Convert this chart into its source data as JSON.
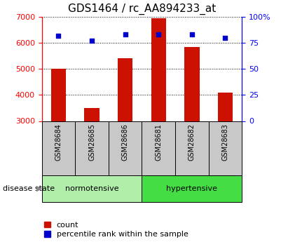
{
  "title": "GDS1464 / rc_AA894233_at",
  "samples": [
    "GSM28684",
    "GSM28685",
    "GSM28686",
    "GSM28681",
    "GSM28682",
    "GSM28683"
  ],
  "counts": [
    5000,
    3500,
    5400,
    6950,
    5850,
    4100
  ],
  "percentiles": [
    82,
    77,
    83,
    83,
    83,
    80
  ],
  "ylim_left": [
    3000,
    7000
  ],
  "ylim_right": [
    0,
    100
  ],
  "yticks_left": [
    3000,
    4000,
    5000,
    6000,
    7000
  ],
  "yticks_right": [
    0,
    25,
    50,
    75,
    100
  ],
  "ytick_labels_right": [
    "0",
    "25",
    "50",
    "75",
    "100%"
  ],
  "groups": [
    {
      "label": "normotensive",
      "indices": [
        0,
        1,
        2
      ],
      "color": "#b0eeaa"
    },
    {
      "label": "hypertensive",
      "indices": [
        3,
        4,
        5
      ],
      "color": "#44dd44"
    }
  ],
  "bar_color": "#cc1100",
  "dot_color": "#0000cc",
  "bar_width": 0.45,
  "grid_color": "#000000",
  "background_color": "#ffffff",
  "label_bg_color": "#c8c8c8",
  "title_fontsize": 11,
  "tick_fontsize": 8,
  "legend_fontsize": 8
}
